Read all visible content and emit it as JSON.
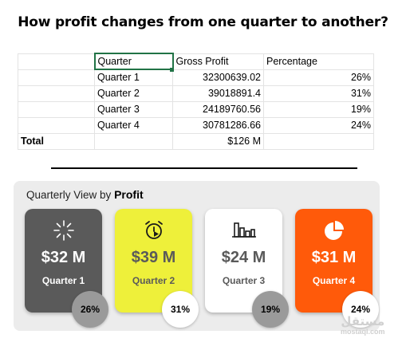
{
  "title": "How profit changes from one quarter to another?",
  "sheet": {
    "headers": [
      "Quarter",
      "Gross Profit",
      "Percentage"
    ],
    "rows": [
      {
        "quarter": "Quarter 1",
        "gross_profit": "32300639.02",
        "percentage": "26%"
      },
      {
        "quarter": "Quarter 2",
        "gross_profit": "39018891.4",
        "percentage": "31%"
      },
      {
        "quarter": "Quarter 3",
        "gross_profit": "24189760.56",
        "percentage": "19%"
      },
      {
        "quarter": "Quarter 4",
        "gross_profit": "30781286.66",
        "percentage": "24%"
      }
    ],
    "total_label": "Total",
    "total_value": "$126 M"
  },
  "dashboard": {
    "title_prefix": "Quarterly View by",
    "title_bold": "Profit",
    "cards": [
      {
        "value": "$32 M",
        "label": "Quarter 1",
        "pct": "26%",
        "icon": "loading-icon",
        "bg": "#5a5a5a",
        "text": "#ffffff",
        "pct_bg": "#9a9a9a",
        "pct_text": "#000000"
      },
      {
        "value": "$39 M",
        "label": "Quarter 2",
        "pct": "31%",
        "icon": "alarm-clock-icon",
        "bg": "#eef03a",
        "text": "#5a5a5a",
        "pct_bg": "#ffffff",
        "pct_text": "#000000"
      },
      {
        "value": "$24 M",
        "label": "Quarter 3",
        "pct": "19%",
        "icon": "bar-chart-icon",
        "bg": "#ffffff",
        "text": "#5a5a5a",
        "pct_bg": "#9a9a9a",
        "pct_text": "#000000"
      },
      {
        "value": "$31 M",
        "label": "Quarter 4",
        "pct": "24%",
        "icon": "pie-chart-icon",
        "bg": "#ff5a0a",
        "text": "#ffffff",
        "pct_bg": "#ffffff",
        "pct_text": "#000000"
      }
    ]
  },
  "watermark": {
    "arabic": "مستقل",
    "latin": "mostaql.com"
  }
}
